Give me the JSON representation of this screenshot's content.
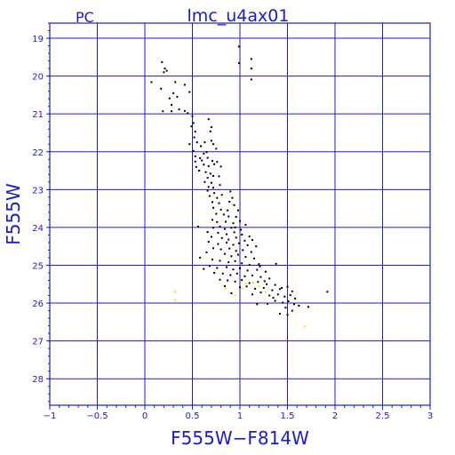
{
  "chart_data": {
    "type": "scatter",
    "corner_label": "PC",
    "title": "lmc_u4ax01",
    "xlabel": "F555W−F814W",
    "ylabel": "F555W",
    "xlim": [
      -1,
      3
    ],
    "ylim": [
      18.6,
      28.7
    ],
    "y_inverted": true,
    "xticks": [
      -1,
      -0.5,
      0,
      0.5,
      1,
      1.5,
      2,
      2.5,
      3
    ],
    "xtick_labels": [
      "−1",
      "−0.5",
      "0",
      "0.5",
      "1",
      "1.5",
      "2",
      "2.5",
      "3"
    ],
    "yticks": [
      19,
      20,
      21,
      22,
      23,
      24,
      25,
      26,
      27,
      28
    ],
    "ytick_labels": [
      "19",
      "20",
      "21",
      "22",
      "23",
      "24",
      "25",
      "26",
      "27",
      "28"
    ],
    "grid": true,
    "colors": {
      "axis": "#1a1ad0",
      "grid": "#1a1ad0",
      "series_main": "#000000",
      "series_flagged": "#e8e800"
    },
    "series": [
      {
        "color": "#000000",
        "points": [
          [
            0.99,
            19.22
          ],
          [
            0.99,
            19.66
          ],
          [
            1.12,
            19.55
          ],
          [
            1.12,
            19.8
          ],
          [
            1.12,
            20.09
          ],
          [
            0.18,
            19.63
          ],
          [
            0.21,
            19.8
          ],
          [
            0.23,
            19.86
          ],
          [
            0.2,
            19.9
          ],
          [
            0.07,
            20.16
          ],
          [
            0.32,
            20.16
          ],
          [
            0.42,
            20.23
          ],
          [
            0.17,
            20.33
          ],
          [
            0.3,
            20.45
          ],
          [
            0.47,
            20.42
          ],
          [
            0.34,
            20.55
          ],
          [
            0.26,
            20.59
          ],
          [
            0.28,
            20.76
          ],
          [
            0.28,
            20.93
          ],
          [
            0.36,
            20.88
          ],
          [
            0.42,
            20.92
          ],
          [
            0.45,
            20.98
          ],
          [
            0.19,
            20.93
          ],
          [
            0.5,
            21.06
          ],
          [
            0.51,
            21.24
          ],
          [
            0.67,
            21.14
          ],
          [
            0.7,
            21.35
          ],
          [
            0.69,
            21.46
          ],
          [
            0.49,
            21.33
          ],
          [
            0.53,
            21.47
          ],
          [
            0.52,
            21.62
          ],
          [
            0.55,
            21.75
          ],
          [
            0.63,
            21.75
          ],
          [
            0.7,
            21.71
          ],
          [
            0.72,
            21.8
          ],
          [
            0.47,
            21.8
          ],
          [
            0.59,
            21.85
          ],
          [
            0.51,
            21.98
          ],
          [
            0.65,
            22.01
          ],
          [
            0.53,
            22.12
          ],
          [
            0.58,
            22.17
          ],
          [
            0.6,
            22.23
          ],
          [
            0.66,
            22.16
          ],
          [
            0.71,
            22.24
          ],
          [
            0.76,
            22.27
          ],
          [
            0.53,
            22.26
          ],
          [
            0.54,
            22.4
          ],
          [
            0.62,
            22.34
          ],
          [
            0.67,
            22.38
          ],
          [
            0.73,
            22.33
          ],
          [
            0.8,
            22.39
          ],
          [
            0.57,
            22.5
          ],
          [
            0.64,
            22.54
          ],
          [
            0.69,
            22.58
          ],
          [
            0.72,
            22.64
          ],
          [
            0.66,
            22.69
          ],
          [
            0.78,
            22.65
          ],
          [
            0.63,
            22.8
          ],
          [
            0.7,
            22.82
          ],
          [
            0.67,
            22.93
          ],
          [
            0.72,
            22.95
          ],
          [
            0.79,
            22.88
          ],
          [
            0.66,
            23.03
          ],
          [
            0.73,
            23.09
          ],
          [
            0.68,
            23.17
          ],
          [
            0.76,
            23.22
          ],
          [
            0.81,
            23.14
          ],
          [
            0.92,
            23.22
          ],
          [
            0.71,
            23.33
          ],
          [
            0.78,
            23.36
          ],
          [
            0.89,
            23.32
          ],
          [
            0.94,
            23.41
          ],
          [
            0.72,
            23.48
          ],
          [
            0.8,
            23.53
          ],
          [
            0.87,
            23.55
          ],
          [
            0.98,
            23.55
          ],
          [
            0.75,
            23.64
          ],
          [
            0.83,
            23.66
          ],
          [
            0.88,
            23.71
          ],
          [
            0.96,
            23.72
          ],
          [
            0.71,
            23.8
          ],
          [
            0.76,
            23.86
          ],
          [
            0.85,
            23.85
          ],
          [
            0.93,
            23.89
          ],
          [
            1.0,
            23.83
          ],
          [
            1.06,
            23.93
          ],
          [
            0.72,
            24.01
          ],
          [
            0.79,
            23.98
          ],
          [
            0.84,
            24.04
          ],
          [
            0.91,
            24.01
          ],
          [
            1.01,
            24.06
          ],
          [
            0.66,
            24.12
          ],
          [
            0.77,
            24.14
          ],
          [
            0.86,
            24.18
          ],
          [
            0.94,
            24.13
          ],
          [
            1.02,
            24.19
          ],
          [
            1.1,
            24.24
          ],
          [
            0.7,
            24.25
          ],
          [
            0.81,
            24.28
          ],
          [
            0.88,
            24.32
          ],
          [
            0.96,
            24.27
          ],
          [
            1.05,
            24.35
          ],
          [
            1.13,
            24.33
          ],
          [
            0.67,
            24.38
          ],
          [
            0.77,
            24.44
          ],
          [
            0.86,
            24.4
          ],
          [
            0.93,
            24.46
          ],
          [
            0.99,
            24.42
          ],
          [
            1.08,
            24.47
          ],
          [
            1.17,
            24.5
          ],
          [
            0.72,
            24.55
          ],
          [
            0.8,
            24.58
          ],
          [
            0.89,
            24.56
          ],
          [
            0.96,
            24.62
          ],
          [
            1.03,
            24.6
          ],
          [
            1.12,
            24.65
          ],
          [
            0.65,
            24.66
          ],
          [
            0.84,
            24.7
          ],
          [
            0.91,
            24.76
          ],
          [
            0.98,
            24.72
          ],
          [
            1.06,
            24.78
          ],
          [
            1.15,
            24.82
          ],
          [
            0.71,
            24.85
          ],
          [
            0.79,
            24.88
          ],
          [
            0.88,
            24.92
          ],
          [
            0.95,
            24.89
          ],
          [
            1.02,
            24.95
          ],
          [
            1.1,
            24.99
          ],
          [
            1.2,
            24.97
          ],
          [
            0.68,
            25.02
          ],
          [
            0.76,
            25.07
          ],
          [
            0.86,
            25.05
          ],
          [
            0.93,
            25.11
          ],
          [
            1.0,
            25.08
          ],
          [
            1.08,
            25.14
          ],
          [
            1.18,
            25.12
          ],
          [
            1.27,
            25.17
          ],
          [
            0.73,
            25.2
          ],
          [
            0.82,
            25.22
          ],
          [
            0.9,
            25.26
          ],
          [
            0.97,
            25.22
          ],
          [
            1.05,
            25.29
          ],
          [
            1.13,
            25.27
          ],
          [
            1.22,
            25.31
          ],
          [
            1.31,
            25.35
          ],
          [
            0.79,
            25.38
          ],
          [
            0.87,
            25.4
          ],
          [
            0.95,
            25.43
          ],
          [
            1.02,
            25.39
          ],
          [
            1.1,
            25.47
          ],
          [
            1.19,
            25.44
          ],
          [
            1.28,
            25.5
          ],
          [
            1.37,
            25.52
          ],
          [
            0.84,
            25.55
          ],
          [
            1.0,
            25.58
          ],
          [
            1.07,
            25.56
          ],
          [
            1.16,
            25.62
          ],
          [
            1.25,
            25.6
          ],
          [
            1.34,
            25.66
          ],
          [
            1.42,
            25.63
          ],
          [
            1.5,
            25.57
          ],
          [
            1.55,
            25.69
          ],
          [
            0.91,
            25.74
          ],
          [
            1.13,
            25.77
          ],
          [
            1.22,
            25.72
          ],
          [
            1.31,
            25.8
          ],
          [
            1.4,
            25.77
          ],
          [
            1.47,
            25.83
          ],
          [
            1.53,
            25.79
          ],
          [
            1.58,
            25.88
          ],
          [
            1.37,
            25.94
          ],
          [
            1.45,
            25.99
          ],
          [
            1.51,
            25.95
          ],
          [
            1.57,
            26.03
          ],
          [
            1.48,
            26.12
          ],
          [
            1.55,
            26.2
          ],
          [
            1.62,
            26.07
          ],
          [
            1.42,
            26.28
          ],
          [
            1.5,
            26.31
          ],
          [
            1.72,
            26.1
          ],
          [
            1.92,
            25.7
          ],
          [
            1.29,
            26.02
          ],
          [
            1.18,
            26.03
          ],
          [
            1.35,
            25.86
          ],
          [
            1.44,
            25.6
          ],
          [
            1.26,
            25.42
          ],
          [
            1.21,
            25.03
          ],
          [
            1.38,
            24.96
          ],
          [
            0.62,
            25.1
          ],
          [
            0.58,
            24.8
          ],
          [
            0.95,
            24.0
          ],
          [
            0.9,
            23.05
          ],
          [
            0.62,
            22.05
          ],
          [
            0.75,
            21.92
          ],
          [
            0.56,
            23.98
          ]
        ]
      },
      {
        "color": "#e8e800",
        "points": [
          [
            0.32,
            25.7
          ],
          [
            0.32,
            25.92
          ],
          [
            0.85,
            25.6
          ],
          [
            0.95,
            25.8
          ],
          [
            1.03,
            25.62
          ],
          [
            1.06,
            25.49
          ],
          [
            1.14,
            25.46
          ],
          [
            1.2,
            25.55
          ],
          [
            1.27,
            25.72
          ],
          [
            1.68,
            26.62
          ],
          [
            0.92,
            23.4
          ]
        ]
      }
    ]
  }
}
